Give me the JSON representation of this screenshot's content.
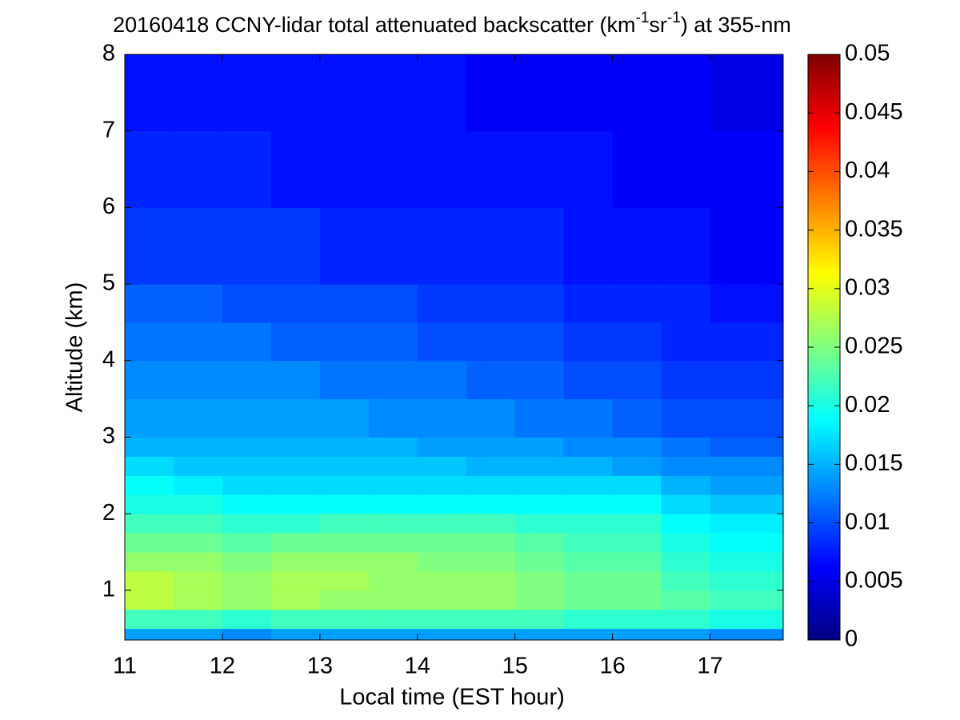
{
  "chart_data": {
    "type": "heatmap",
    "title": [
      "20160418 CCNY-lidar total attenuated backscatter (km",
      "-1",
      "sr",
      "-1",
      ") at 355-nm"
    ],
    "xlabel": "Local time (EST hour)",
    "ylabel": "Altitude (km)",
    "xbins": [
      11,
      11.5,
      12,
      12.5,
      13,
      13.5,
      14,
      14.5,
      15,
      15.5,
      16,
      16.5,
      17,
      17.5,
      17.75
    ],
    "ybins": [
      0.35,
      0.5,
      0.75,
      1,
      1.25,
      1.5,
      1.75,
      2,
      2.25,
      2.5,
      2.75,
      3,
      3.5,
      4,
      4.5,
      5,
      6,
      7,
      8
    ],
    "values": [
      [
        0.014,
        0.014,
        0.013,
        0.014,
        0.014,
        0.014,
        0.014,
        0.014,
        0.014,
        0.014,
        0.014,
        0.014,
        0.013,
        0.013
      ],
      [
        0.022,
        0.022,
        0.021,
        0.022,
        0.022,
        0.022,
        0.022,
        0.022,
        0.022,
        0.021,
        0.021,
        0.021,
        0.02,
        0.02
      ],
      [
        0.028,
        0.027,
        0.026,
        0.027,
        0.026,
        0.026,
        0.026,
        0.026,
        0.025,
        0.024,
        0.024,
        0.023,
        0.022,
        0.022
      ],
      [
        0.028,
        0.027,
        0.026,
        0.027,
        0.027,
        0.026,
        0.026,
        0.026,
        0.025,
        0.024,
        0.024,
        0.022,
        0.021,
        0.021
      ],
      [
        0.026,
        0.026,
        0.025,
        0.026,
        0.026,
        0.026,
        0.025,
        0.025,
        0.024,
        0.023,
        0.023,
        0.021,
        0.02,
        0.02
      ],
      [
        0.024,
        0.024,
        0.023,
        0.024,
        0.024,
        0.024,
        0.024,
        0.024,
        0.023,
        0.022,
        0.022,
        0.02,
        0.019,
        0.019
      ],
      [
        0.022,
        0.022,
        0.021,
        0.021,
        0.022,
        0.022,
        0.022,
        0.022,
        0.021,
        0.021,
        0.021,
        0.019,
        0.018,
        0.018
      ],
      [
        0.02,
        0.02,
        0.019,
        0.019,
        0.019,
        0.019,
        0.019,
        0.019,
        0.019,
        0.019,
        0.019,
        0.017,
        0.016,
        0.016
      ],
      [
        0.019,
        0.018,
        0.017,
        0.017,
        0.017,
        0.017,
        0.017,
        0.017,
        0.017,
        0.017,
        0.017,
        0.015,
        0.014,
        0.014
      ],
      [
        0.017,
        0.016,
        0.016,
        0.016,
        0.016,
        0.016,
        0.016,
        0.015,
        0.015,
        0.015,
        0.014,
        0.013,
        0.013,
        0.013
      ],
      [
        0.015,
        0.015,
        0.015,
        0.015,
        0.015,
        0.015,
        0.014,
        0.014,
        0.014,
        0.013,
        0.013,
        0.012,
        0.011,
        0.011
      ],
      [
        0.014,
        0.014,
        0.014,
        0.014,
        0.014,
        0.013,
        0.013,
        0.013,
        0.012,
        0.012,
        0.011,
        0.01,
        0.01,
        0.01
      ],
      [
        0.013,
        0.013,
        0.013,
        0.013,
        0.012,
        0.012,
        0.012,
        0.011,
        0.011,
        0.01,
        0.01,
        0.009,
        0.009,
        0.009
      ],
      [
        0.012,
        0.012,
        0.012,
        0.011,
        0.011,
        0.011,
        0.01,
        0.01,
        0.01,
        0.009,
        0.009,
        0.008,
        0.008,
        0.008
      ],
      [
        0.011,
        0.011,
        0.01,
        0.01,
        0.01,
        0.01,
        0.009,
        0.009,
        0.009,
        0.008,
        0.008,
        0.008,
        0.007,
        0.007
      ],
      [
        0.009,
        0.009,
        0.009,
        0.009,
        0.008,
        0.008,
        0.008,
        0.008,
        0.008,
        0.007,
        0.007,
        0.007,
        0.006,
        0.006
      ],
      [
        0.008,
        0.008,
        0.008,
        0.007,
        0.007,
        0.007,
        0.007,
        0.007,
        0.007,
        0.007,
        0.006,
        0.006,
        0.006,
        0.006
      ],
      [
        0.007,
        0.007,
        0.007,
        0.007,
        0.007,
        0.007,
        0.007,
        0.006,
        0.006,
        0.006,
        0.006,
        0.006,
        0.005,
        0.005
      ]
    ],
    "xlim": [
      11,
      17.75
    ],
    "ylim": [
      0.35,
      8
    ],
    "xticks": [
      11,
      12,
      13,
      14,
      15,
      16,
      17
    ],
    "yticks": [
      1,
      2,
      3,
      4,
      5,
      6,
      7,
      8
    ],
    "colormap": "jet",
    "clim": [
      0,
      0.05
    ],
    "cticks": [
      0,
      0.005,
      0.01,
      0.015,
      0.02,
      0.025,
      0.03,
      0.035,
      0.04,
      0.045,
      0.05
    ]
  }
}
